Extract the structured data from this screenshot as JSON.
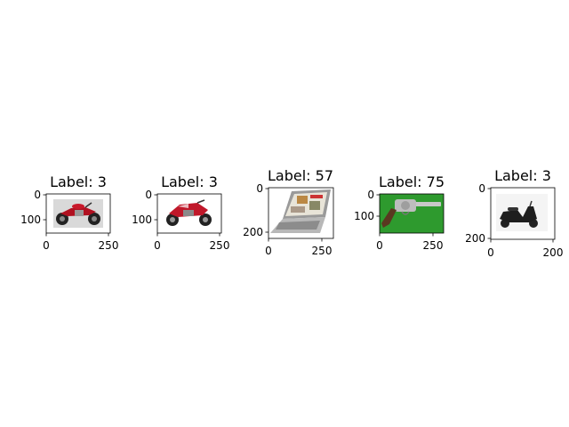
{
  "figure": {
    "panels": [
      {
        "title": "Label: 3",
        "image_icon": "red-cruiser-motorcycle-icon",
        "xticks": [
          "0",
          "250"
        ],
        "yticks": [
          "0",
          "100"
        ],
        "background": "#dcdcdc"
      },
      {
        "title": "Label: 3",
        "image_icon": "red-sport-motorcycle-icon",
        "xticks": [
          "0",
          "250"
        ],
        "yticks": [
          "0",
          "100"
        ],
        "background": "#ffffff"
      },
      {
        "title": "Label: 57",
        "image_icon": "laptop-icon",
        "xticks": [
          "0",
          "250"
        ],
        "yticks": [
          "0",
          "200"
        ],
        "background": "#ffffff"
      },
      {
        "title": "Label: 75",
        "image_icon": "revolver-icon",
        "xticks": [
          "0",
          "250"
        ],
        "yticks": [
          "0",
          "100"
        ],
        "background": "#2e9a2e"
      },
      {
        "title": "Label: 3",
        "image_icon": "black-scooter-icon",
        "xticks": [
          "0",
          "200"
        ],
        "yticks": [
          "0",
          "200"
        ],
        "background": "#f4f4f4"
      }
    ]
  }
}
